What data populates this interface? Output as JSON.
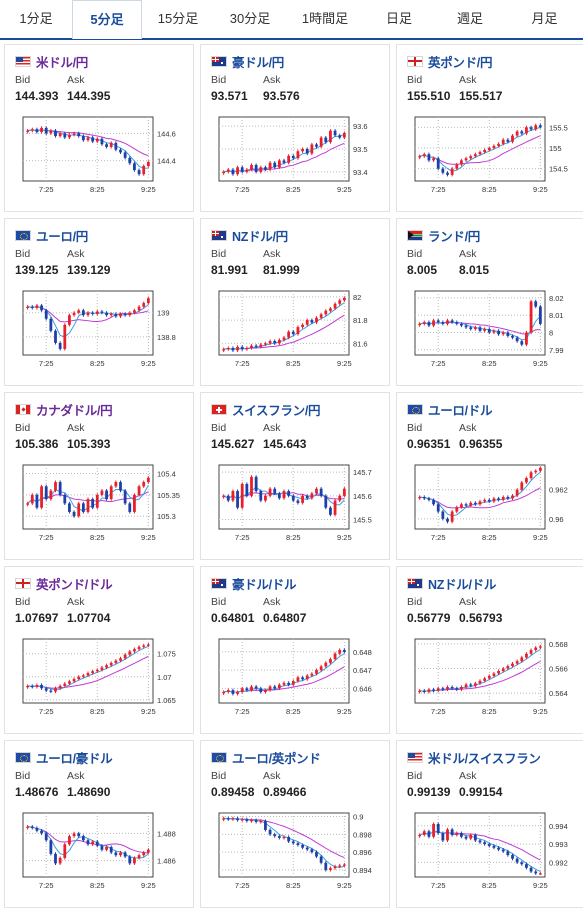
{
  "tabs": [
    {
      "label": "1分足",
      "active": false
    },
    {
      "label": "5分足",
      "active": true
    },
    {
      "label": "15分足",
      "active": false
    },
    {
      "label": "30分足",
      "active": false
    },
    {
      "label": "1時間足",
      "active": false
    },
    {
      "label": "日足",
      "active": false
    },
    {
      "label": "週足",
      "active": false
    },
    {
      "label": "月足",
      "active": false
    }
  ],
  "labels": {
    "bid": "Bid",
    "ask": "Ask"
  },
  "colors": {
    "up": "#e8202a",
    "down": "#1f3fa8",
    "ma_short": "#3aa0e6",
    "ma_long": "#c23bd6",
    "accent": "#1a4c9c"
  },
  "cards": [
    {
      "title": "米ドル/円",
      "title_color": "purple",
      "flag": "us-flag",
      "bid": "144.393",
      "ask": "144.395",
      "chart_data": {
        "type": "candlestick",
        "x_ticks": [
          "7:25",
          "8:25",
          "9:25"
        ],
        "y_ticks": [
          "144.6",
          "144.4"
        ],
        "y_tick_values": [
          144.6,
          144.4
        ],
        "ylim": [
          144.25,
          144.72
        ],
        "closes": [
          144.62,
          144.63,
          144.61,
          144.64,
          144.6,
          144.62,
          144.58,
          144.6,
          144.57,
          144.59,
          144.6,
          144.58,
          144.55,
          144.57,
          144.54,
          144.56,
          144.52,
          144.5,
          144.53,
          144.48,
          144.46,
          144.42,
          144.38,
          144.33,
          144.3,
          144.36,
          144.39
        ]
      }
    },
    {
      "title": "豪ドル/円",
      "title_color": "blue",
      "flag": "au-flag",
      "bid": "93.571",
      "ask": "93.576",
      "chart_data": {
        "type": "candlestick",
        "x_ticks": [
          "7:25",
          "8:25",
          "9:25"
        ],
        "y_ticks": [
          "93.6",
          "93.5",
          "93.4"
        ],
        "y_tick_values": [
          93.6,
          93.5,
          93.4
        ],
        "ylim": [
          93.36,
          93.64
        ],
        "closes": [
          93.4,
          93.41,
          93.39,
          93.42,
          93.4,
          93.41,
          93.43,
          93.4,
          93.42,
          93.41,
          93.44,
          93.42,
          93.45,
          93.44,
          93.47,
          93.46,
          93.49,
          93.5,
          93.48,
          93.52,
          93.51,
          93.55,
          93.53,
          93.58,
          93.56,
          93.55,
          93.57
        ]
      }
    },
    {
      "title": "英ポンド/円",
      "title_color": "blue",
      "flag": "uk-flag",
      "bid": "155.510",
      "ask": "155.517",
      "chart_data": {
        "type": "candlestick",
        "x_ticks": [
          "7:25",
          "8:25",
          "9:25"
        ],
        "y_ticks": [
          "155.5",
          "155",
          "154.5"
        ],
        "y_tick_values": [
          155.5,
          155.0,
          154.5
        ],
        "ylim": [
          154.2,
          155.75
        ],
        "closes": [
          154.8,
          154.85,
          154.7,
          154.75,
          154.5,
          154.4,
          154.35,
          154.5,
          154.6,
          154.7,
          154.75,
          154.8,
          154.85,
          154.9,
          154.95,
          155.0,
          155.05,
          155.1,
          155.2,
          155.15,
          155.3,
          155.4,
          155.35,
          155.5,
          155.45,
          155.55,
          155.51
        ]
      }
    },
    {
      "title": "ユーロ/円",
      "title_color": "blue",
      "flag": "eu-flag",
      "bid": "139.125",
      "ask": "139.129",
      "chart_data": {
        "type": "candlestick",
        "x_ticks": [
          "7:25",
          "8:25",
          "9:25"
        ],
        "y_ticks": [
          "139",
          "138.8"
        ],
        "y_tick_values": [
          139.0,
          138.8
        ],
        "ylim": [
          138.65,
          139.18
        ],
        "closes": [
          139.05,
          139.04,
          139.06,
          139.02,
          138.95,
          138.85,
          138.75,
          138.7,
          138.9,
          138.98,
          139.0,
          139.02,
          138.98,
          139.0,
          138.99,
          139.01,
          139.0,
          138.98,
          138.99,
          138.97,
          138.99,
          138.98,
          139.0,
          139.02,
          139.05,
          139.08,
          139.12
        ]
      }
    },
    {
      "title": "NZドル/円",
      "title_color": "blue",
      "flag": "nz-flag",
      "bid": "81.991",
      "ask": "81.999",
      "chart_data": {
        "type": "candlestick",
        "x_ticks": [
          "7:25",
          "8:25",
          "9:25"
        ],
        "y_ticks": [
          "82",
          "81.8",
          "81.6"
        ],
        "y_tick_values": [
          82.0,
          81.8,
          81.6
        ],
        "ylim": [
          81.5,
          82.05
        ],
        "closes": [
          81.55,
          81.56,
          81.54,
          81.57,
          81.55,
          81.56,
          81.58,
          81.57,
          81.59,
          81.6,
          81.62,
          81.6,
          81.63,
          81.65,
          81.7,
          81.68,
          81.74,
          81.76,
          81.8,
          81.78,
          81.82,
          81.85,
          81.88,
          81.9,
          81.94,
          81.97,
          81.99
        ]
      }
    },
    {
      "title": "ランド/円",
      "title_color": "blue",
      "flag": "za-flag",
      "bid": "8.005",
      "ask": "8.015",
      "chart_data": {
        "type": "candlestick",
        "x_ticks": [
          "7:25",
          "8:25",
          "9:25"
        ],
        "y_ticks": [
          "8.02",
          "8.01",
          "8",
          "7.99"
        ],
        "y_tick_values": [
          8.02,
          8.01,
          8.0,
          7.99
        ],
        "ylim": [
          7.987,
          8.024
        ],
        "closes": [
          8.005,
          8.006,
          8.004,
          8.007,
          8.006,
          8.005,
          8.007,
          8.006,
          8.005,
          8.004,
          8.003,
          8.002,
          8.003,
          8.001,
          8.002,
          8.0,
          8.001,
          7.999,
          8.0,
          7.998,
          7.997,
          7.995,
          7.993,
          8.0,
          8.018,
          8.015,
          8.005
        ]
      }
    },
    {
      "title": "カナダドル/円",
      "title_color": "purple",
      "flag": "ca-flag",
      "bid": "105.386",
      "ask": "105.393",
      "chart_data": {
        "type": "candlestick",
        "x_ticks": [
          "7:25",
          "8:25",
          "9:25"
        ],
        "y_ticks": [
          "105.4",
          "105.35",
          "105.3"
        ],
        "y_tick_values": [
          105.4,
          105.35,
          105.3
        ],
        "ylim": [
          105.27,
          105.42
        ],
        "closes": [
          105.33,
          105.35,
          105.32,
          105.37,
          105.34,
          105.36,
          105.38,
          105.35,
          105.33,
          105.31,
          105.3,
          105.33,
          105.31,
          105.34,
          105.32,
          105.35,
          105.36,
          105.34,
          105.37,
          105.38,
          105.36,
          105.33,
          105.31,
          105.35,
          105.37,
          105.38,
          105.39
        ]
      }
    },
    {
      "title": "スイスフラン/円",
      "title_color": "blue",
      "flag": "ch-flag",
      "bid": "145.627",
      "ask": "145.643",
      "chart_data": {
        "type": "candlestick",
        "x_ticks": [
          "7:25",
          "8:25",
          "9:25"
        ],
        "y_ticks": [
          "145.7",
          "145.6",
          "145.5"
        ],
        "y_tick_values": [
          145.7,
          145.6,
          145.5
        ],
        "ylim": [
          145.46,
          145.73
        ],
        "closes": [
          145.6,
          145.58,
          145.62,
          145.55,
          145.65,
          145.6,
          145.68,
          145.62,
          145.58,
          145.6,
          145.63,
          145.61,
          145.59,
          145.62,
          145.6,
          145.58,
          145.57,
          145.6,
          145.59,
          145.61,
          145.63,
          145.6,
          145.55,
          145.52,
          145.58,
          145.6,
          145.63
        ]
      }
    },
    {
      "title": "ユーロ/ドル",
      "title_color": "blue",
      "flag": "eu-flag",
      "bid": "0.96351",
      "ask": "0.96355",
      "chart_data": {
        "type": "candlestick",
        "x_ticks": [
          "7:25",
          "8:25",
          "9:25"
        ],
        "y_ticks": [
          "0.962",
          "0.96"
        ],
        "y_tick_values": [
          0.962,
          0.96
        ],
        "ylim": [
          0.9593,
          0.9637
        ],
        "closes": [
          0.9615,
          0.9614,
          0.9613,
          0.961,
          0.9605,
          0.96,
          0.9598,
          0.9605,
          0.9608,
          0.961,
          0.9609,
          0.9611,
          0.961,
          0.9612,
          0.9613,
          0.9612,
          0.9614,
          0.9613,
          0.9615,
          0.9614,
          0.9616,
          0.962,
          0.9625,
          0.9628,
          0.9632,
          0.9633,
          0.9635
        ]
      }
    },
    {
      "title": "英ポンド/ドル",
      "title_color": "purple",
      "flag": "uk-flag",
      "bid": "1.07697",
      "ask": "1.07704",
      "chart_data": {
        "type": "candlestick",
        "x_ticks": [
          "7:25",
          "8:25",
          "9:25"
        ],
        "y_ticks": [
          "1.075",
          "1.07",
          "1.065"
        ],
        "y_tick_values": [
          1.075,
          1.07,
          1.065
        ],
        "ylim": [
          1.0643,
          1.0782
        ],
        "closes": [
          1.068,
          1.0678,
          1.0682,
          1.0675,
          1.067,
          1.0668,
          1.0675,
          1.068,
          1.0685,
          1.069,
          1.0695,
          1.07,
          1.0703,
          1.0708,
          1.0712,
          1.0715,
          1.072,
          1.0725,
          1.073,
          1.0735,
          1.074,
          1.0748,
          1.0755,
          1.076,
          1.0765,
          1.0768,
          1.077
        ]
      }
    },
    {
      "title": "豪ドル/ドル",
      "title_color": "blue",
      "flag": "au-flag",
      "bid": "0.64801",
      "ask": "0.64807",
      "chart_data": {
        "type": "candlestick",
        "x_ticks": [
          "7:25",
          "8:25",
          "9:25"
        ],
        "y_ticks": [
          "0.648",
          "0.647",
          "0.646"
        ],
        "y_tick_values": [
          0.648,
          0.647,
          0.646
        ],
        "ylim": [
          0.6452,
          0.6487
        ],
        "closes": [
          0.6458,
          0.6459,
          0.6457,
          0.6458,
          0.646,
          0.6459,
          0.6461,
          0.646,
          0.6458,
          0.6459,
          0.6461,
          0.646,
          0.6462,
          0.6463,
          0.6462,
          0.6464,
          0.6466,
          0.6465,
          0.6467,
          0.6468,
          0.647,
          0.6472,
          0.6474,
          0.6476,
          0.6479,
          0.6481,
          0.648
        ]
      }
    },
    {
      "title": "NZドル/ドル",
      "title_color": "blue",
      "flag": "nz-flag",
      "bid": "0.56779",
      "ask": "0.56793",
      "chart_data": {
        "type": "candlestick",
        "x_ticks": [
          "7:25",
          "8:25",
          "9:25"
        ],
        "y_ticks": [
          "0.568",
          "0.566",
          "0.564"
        ],
        "y_tick_values": [
          0.568,
          0.566,
          0.564
        ],
        "ylim": [
          0.5632,
          0.5684
        ],
        "closes": [
          0.5642,
          0.5641,
          0.5643,
          0.5642,
          0.5644,
          0.5643,
          0.5645,
          0.5644,
          0.5643,
          0.5645,
          0.5647,
          0.5646,
          0.5648,
          0.565,
          0.5652,
          0.5654,
          0.5656,
          0.5658,
          0.566,
          0.5662,
          0.5664,
          0.5666,
          0.5669,
          0.5672,
          0.5675,
          0.5677,
          0.5678
        ]
      }
    },
    {
      "title": "ユーロ/豪ドル",
      "title_color": "blue",
      "flag": "eu-flag",
      "bid": "1.48676",
      "ask": "1.48690",
      "chart_data": {
        "type": "candlestick",
        "x_ticks": [
          "7:25",
          "8:25",
          "9:25"
        ],
        "y_ticks": [
          "1.488",
          "1.486"
        ],
        "y_tick_values": [
          1.488,
          1.486
        ],
        "ylim": [
          1.4848,
          1.4895
        ],
        "closes": [
          1.4885,
          1.4884,
          1.4882,
          1.488,
          1.4875,
          1.4865,
          1.4858,
          1.4862,
          1.4872,
          1.4878,
          1.488,
          1.4878,
          1.4875,
          1.4872,
          1.4874,
          1.4871,
          1.4868,
          1.487,
          1.4866,
          1.4864,
          1.4866,
          1.4863,
          1.4858,
          1.4862,
          1.4864,
          1.4866,
          1.4868
        ]
      }
    },
    {
      "title": "ユーロ/英ポンド",
      "title_color": "blue",
      "flag": "eu-flag",
      "bid": "0.89458",
      "ask": "0.89466",
      "chart_data": {
        "type": "candlestick",
        "x_ticks": [
          "7:25",
          "8:25",
          "9:25"
        ],
        "y_ticks": [
          "0.9",
          "0.898",
          "0.896",
          "0.894"
        ],
        "y_tick_values": [
          0.9,
          0.898,
          0.896,
          0.894
        ],
        "ylim": [
          0.8932,
          0.9004
        ],
        "closes": [
          0.8998,
          0.8997,
          0.8998,
          0.8996,
          0.8997,
          0.8995,
          0.8996,
          0.8994,
          0.8995,
          0.8985,
          0.898,
          0.8978,
          0.8976,
          0.8977,
          0.8972,
          0.897,
          0.8968,
          0.8965,
          0.8963,
          0.896,
          0.8955,
          0.8948,
          0.894,
          0.8942,
          0.8944,
          0.8945,
          0.8946
        ]
      }
    },
    {
      "title": "米ドル/スイスフラン",
      "title_color": "blue",
      "flag": "us-flag",
      "bid": "0.99139",
      "ask": "0.99154",
      "chart_data": {
        "type": "candlestick",
        "x_ticks": [
          "7:25",
          "8:25",
          "9:25"
        ],
        "y_ticks": [
          "0.994",
          "0.993",
          "0.992"
        ],
        "y_tick_values": [
          0.994,
          0.993,
          0.992
        ],
        "ylim": [
          0.9912,
          0.9947
        ],
        "closes": [
          0.9935,
          0.9937,
          0.9934,
          0.9941,
          0.9936,
          0.9932,
          0.9938,
          0.9935,
          0.9936,
          0.9934,
          0.9933,
          0.9935,
          0.9932,
          0.9931,
          0.993,
          0.9929,
          0.9928,
          0.9927,
          0.9926,
          0.9924,
          0.9922,
          0.992,
          0.9919,
          0.9917,
          0.9915,
          0.9914,
          0.9914
        ]
      }
    }
  ]
}
